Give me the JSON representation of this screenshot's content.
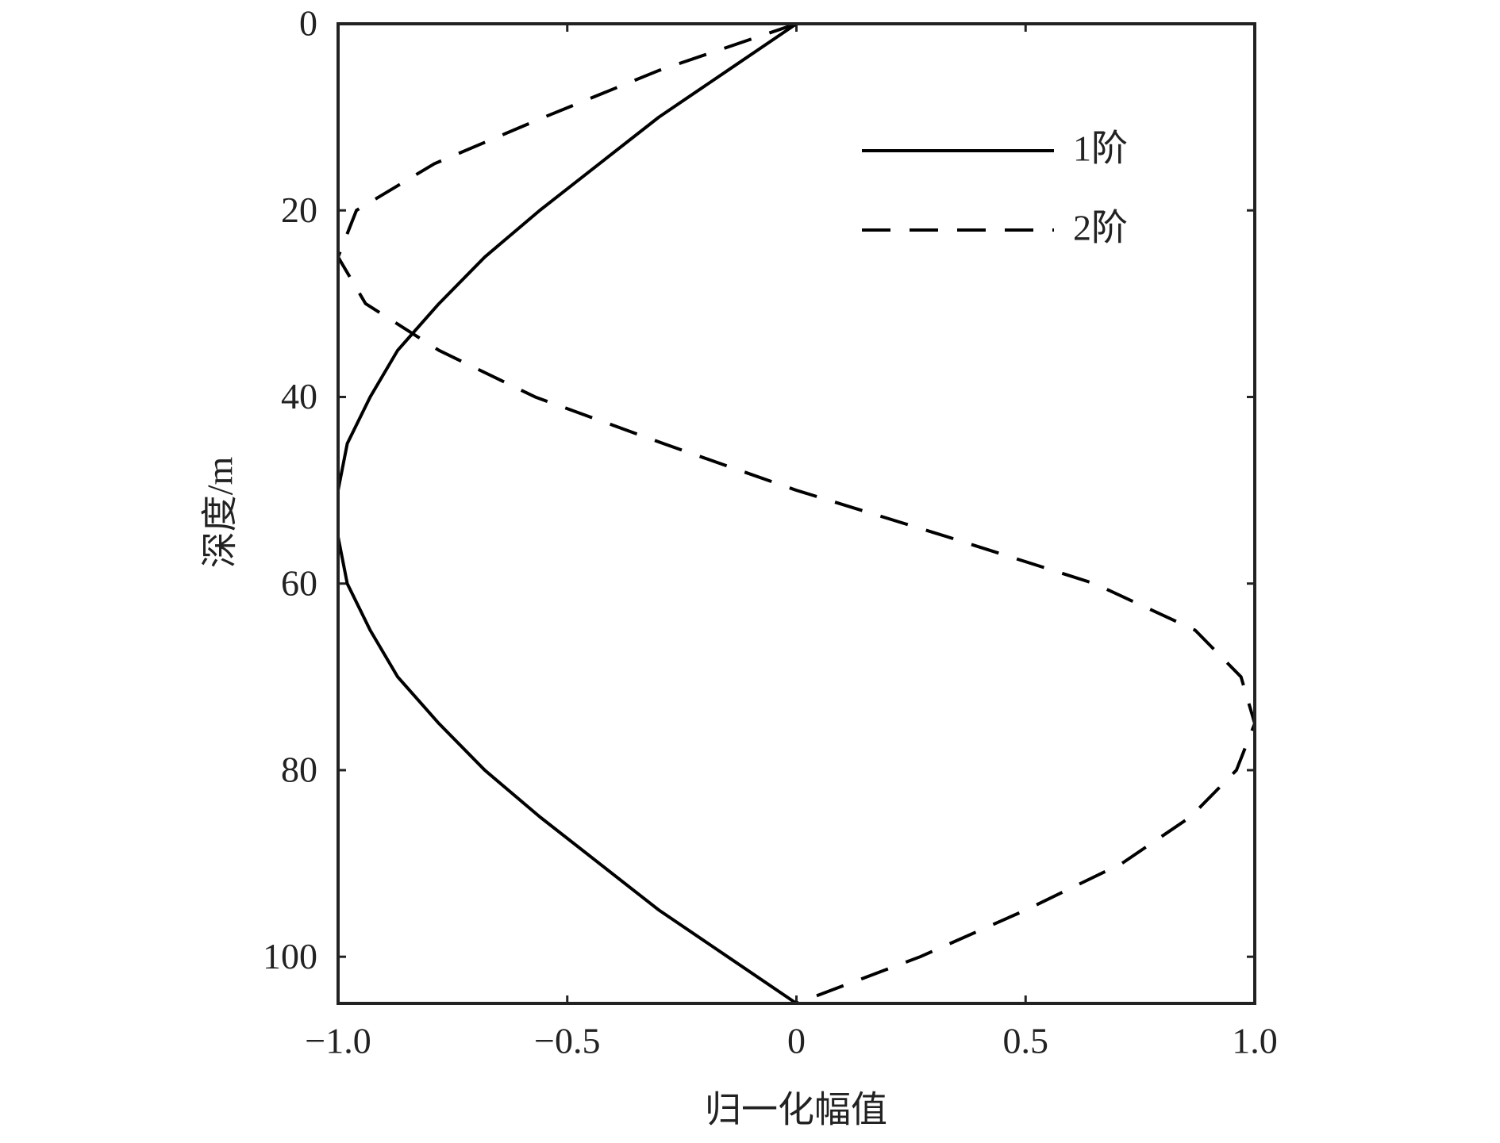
{
  "chart_data": {
    "type": "line",
    "xlabel": "归一化幅值",
    "ylabel": "深度/m",
    "y": [
      0,
      5,
      10,
      15,
      20,
      25,
      30,
      35,
      40,
      45,
      50,
      55,
      60,
      65,
      70,
      75,
      80,
      85,
      90,
      95,
      100,
      105
    ],
    "series": [
      {
        "name": "1阶",
        "color": "#000000",
        "dash": "solid",
        "values": [
          0,
          -0.15,
          -0.3,
          -0.43,
          -0.56,
          -0.68,
          -0.78,
          -0.87,
          -0.93,
          -0.98,
          -1.0,
          -1.0,
          -0.98,
          -0.93,
          -0.87,
          -0.78,
          -0.68,
          -0.56,
          -0.43,
          -0.3,
          -0.15,
          0
        ]
      },
      {
        "name": "2阶",
        "color": "#000000",
        "dash": "dashed",
        "values": [
          0,
          -0.3,
          -0.55,
          -0.79,
          -0.96,
          -1.0,
          -0.94,
          -0.78,
          -0.57,
          -0.29,
          0,
          0.33,
          0.65,
          0.87,
          0.97,
          1.0,
          0.96,
          0.86,
          0.71,
          0.5,
          0.27,
          0
        ]
      }
    ],
    "xlim": [
      -1,
      1
    ],
    "xticks": [
      {
        "value": -1,
        "label": "−1.0"
      },
      {
        "value": -0.5,
        "label": "−0.5"
      },
      0,
      0.5,
      {
        "value": 1,
        "label": "1.0"
      }
    ],
    "ylim": [
      0,
      105
    ],
    "yticks": [
      0,
      20,
      40,
      60,
      80,
      100
    ],
    "y_inverted": true,
    "legend": "upper right"
  }
}
